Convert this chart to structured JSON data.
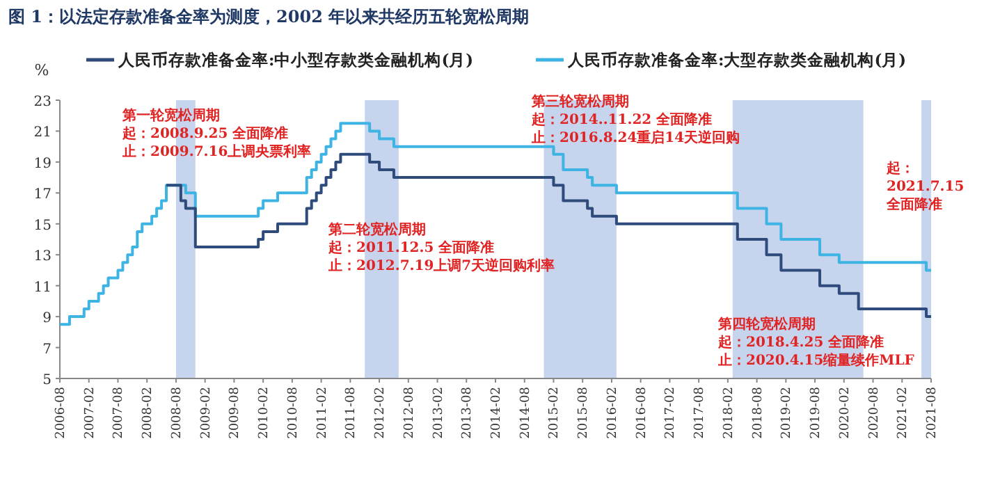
{
  "chart_data": {
    "type": "step",
    "title": "图 1：以法定存款准备金率为测度，2002 年以来共经历五轮宽松周期",
    "ylabel": "%",
    "series": [
      {
        "name": "人民币存款准备金率:中小型存款类金融机构(月)",
        "color": "#2f4b7c",
        "x": [
          "2008-06",
          "2008-09",
          "2008-10",
          "2008-12",
          "2010-01",
          "2010-02",
          "2010-05",
          "2010-11",
          "2010-12",
          "2011-01",
          "2011-02",
          "2011-03",
          "2011-04",
          "2011-05",
          "2011-06",
          "2011-12",
          "2012-02",
          "2012-05",
          "2015-02",
          "2015-04",
          "2015-09",
          "2015-10",
          "2016-03",
          "2018-04",
          "2018-10",
          "2019-01",
          "2019-09",
          "2020-01",
          "2020-05",
          "2021-07",
          "2021-08"
        ],
        "values": [
          17.5,
          16.5,
          16,
          13.5,
          14,
          14.5,
          15,
          16,
          16.5,
          17,
          17.5,
          18,
          18.5,
          19,
          19.5,
          19,
          18.5,
          18,
          17.5,
          16.5,
          16,
          15.5,
          15,
          14,
          13,
          12,
          11,
          10.5,
          9.5,
          9,
          9
        ]
      },
      {
        "name": "人民币存款准备金率:大型存款类金融机构(月)",
        "color": "#3db4e3",
        "x": [
          "2006-08",
          "2006-10",
          "2007-01",
          "2007-02",
          "2007-04",
          "2007-05",
          "2007-06",
          "2007-08",
          "2007-09",
          "2007-10",
          "2007-11",
          "2007-12",
          "2008-01",
          "2008-03",
          "2008-04",
          "2008-05",
          "2008-06",
          "2008-10",
          "2008-12",
          "2010-01",
          "2010-02",
          "2010-05",
          "2010-11",
          "2010-12",
          "2011-01",
          "2011-02",
          "2011-03",
          "2011-04",
          "2011-05",
          "2011-06",
          "2011-12",
          "2012-02",
          "2012-05",
          "2015-02",
          "2015-04",
          "2015-09",
          "2015-10",
          "2016-03",
          "2018-04",
          "2018-10",
          "2019-01",
          "2019-09",
          "2020-01",
          "2021-07",
          "2021-08"
        ],
        "values": [
          8.5,
          9,
          9.5,
          10,
          10.5,
          11,
          11.5,
          12,
          12.5,
          13,
          13.5,
          14.5,
          15,
          15.5,
          16,
          16.5,
          17.5,
          17,
          15.5,
          16,
          16.5,
          17,
          18,
          18.5,
          19,
          19.5,
          20,
          20.5,
          21,
          21.5,
          21,
          20.5,
          20,
          19.5,
          18.5,
          18,
          17.5,
          17,
          16,
          15,
          14,
          13,
          12.5,
          12,
          12
        ]
      }
    ],
    "xlim": [
      "2006-08",
      "2021-08"
    ],
    "xticks": [
      "2006-08",
      "2007-02",
      "2007-08",
      "2008-02",
      "2008-08",
      "2009-02",
      "2009-08",
      "2010-02",
      "2010-08",
      "2011-02",
      "2011-08",
      "2012-02",
      "2012-08",
      "2013-02",
      "2013-08",
      "2014-02",
      "2014-08",
      "2015-02",
      "2015-08",
      "2016-02",
      "2016-08",
      "2017-02",
      "2017-08",
      "2018-02",
      "2018-08",
      "2019-02",
      "2019-08",
      "2020-02",
      "2020-08",
      "2021-02",
      "2021-08"
    ],
    "ylim": [
      5,
      23
    ],
    "yticks": [
      5,
      7,
      9,
      11,
      13,
      15,
      17,
      19,
      21,
      23
    ],
    "bands": [
      {
        "axis": "x",
        "from": "2008-08",
        "to": "2008-12",
        "color": "#b4c6e7"
      },
      {
        "axis": "x",
        "from": "2011-11",
        "to": "2012-06",
        "color": "#b4c6e7"
      },
      {
        "axis": "x",
        "from": "2014-12",
        "to": "2016-03",
        "color": "#b4c6e7"
      },
      {
        "axis": "x",
        "from": "2018-03",
        "to": "2020-06",
        "color": "#b4c6e7"
      },
      {
        "axis": "x",
        "from": "2021-06",
        "to": "2021-08",
        "color": "#b4c6e7"
      }
    ],
    "annotations": [
      "第一轮宽松周期",
      "起：2008.9.25 全面降准",
      "止：2009.7.16上调央票利率",
      "第二轮宽松周期",
      "起：2011.12.5 全面降准",
      "止：2012.7.19上调7天逆回购利率",
      "第三轮宽松周期",
      "起：2014..11.22 全面降准",
      "止：2016.8.24重启14天逆回购",
      "第四轮宽松周期",
      "起：2018.4.25 全面降准",
      "止：2020.4.15缩量续作MLF",
      "起：",
      "2021.7.15",
      "全面降准"
    ],
    "legend": "top",
    "grid": false
  }
}
